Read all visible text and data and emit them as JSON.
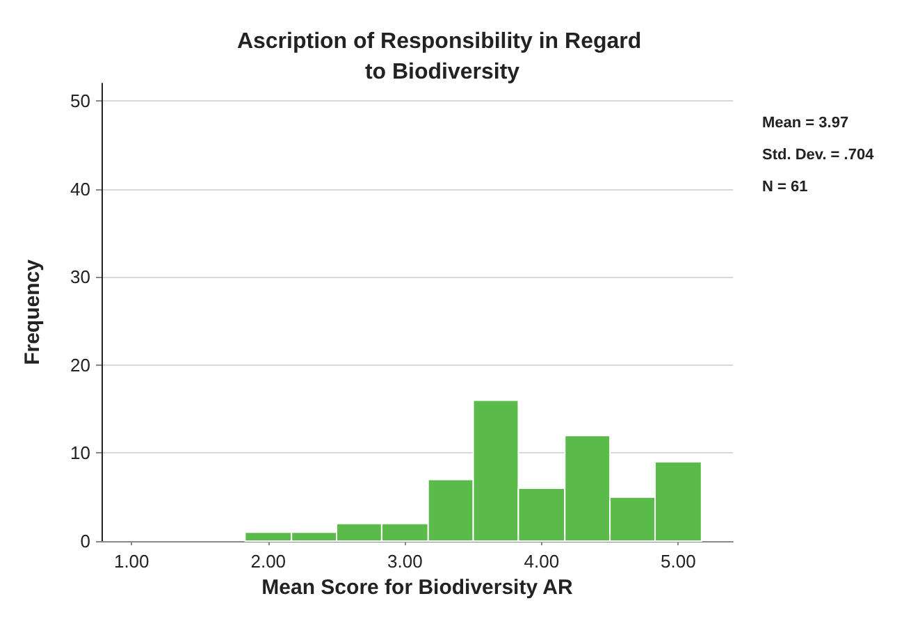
{
  "chart_data": {
    "type": "histogram",
    "title": "Ascription of Responsibility in Regard to Biodiversity",
    "xlabel": "Mean Score for Biodiversity AR",
    "ylabel": "Frequency",
    "bins": [
      1.83,
      2.17,
      2.5,
      2.83,
      3.17,
      3.5,
      3.83,
      4.17,
      4.5,
      4.83,
      5.17
    ],
    "values": [
      1,
      1,
      2,
      2,
      7,
      16,
      6,
      12,
      5,
      9
    ],
    "color": "#5aba4a",
    "xlim": [
      0.78,
      5.4
    ],
    "xticks": [
      {
        "value": 1,
        "label": "1.00"
      },
      {
        "value": 2,
        "label": "2.00"
      },
      {
        "value": 3,
        "label": "3.00"
      },
      {
        "value": 4,
        "label": "4.00"
      },
      {
        "value": 5,
        "label": "5.00"
      }
    ],
    "ylim": [
      0,
      52
    ],
    "yticks": [
      0,
      10,
      20,
      30,
      40,
      50
    ],
    "grid": "y",
    "annotations": [
      "Mean = 3.97",
      "Std. Dev. = .704",
      "N = 61"
    ]
  }
}
